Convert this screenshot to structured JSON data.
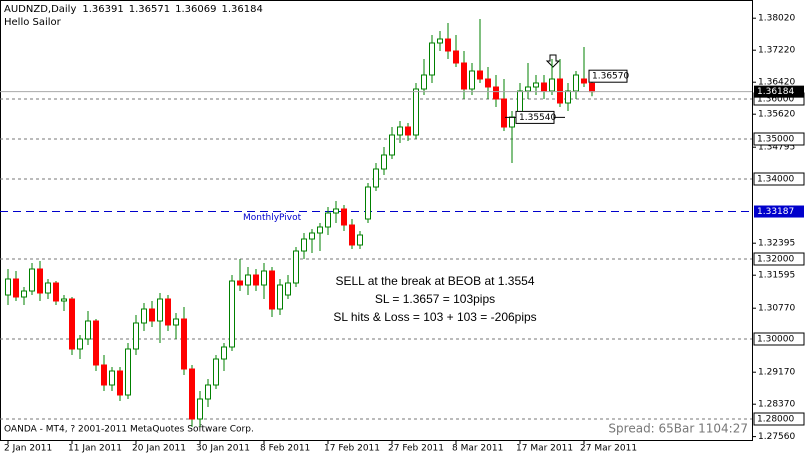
{
  "chart_data": {
    "type": "candlestick",
    "title": "AUDNZD,Daily",
    "subtitle": "Hello Sailor",
    "footer": "OANDA - MT4, ? 2001-2011 MetaQuotes Software Corp.",
    "status": "Spread: 65Bar  1104:27",
    "annotations": [
      "SELL at the break at BEOB at 1.3554",
      "SL = 1.3657 = 103pips",
      "SL hits & Loss = 103 + 103 = -206pips"
    ],
    "categories": [
      "2 Jan 2011",
      null,
      null,
      null,
      null,
      null,
      null,
      null,
      "11 Jan 2011",
      null,
      null,
      null,
      null,
      null,
      null,
      null,
      "20 Jan 2011",
      null,
      null,
      null,
      null,
      null,
      null,
      null,
      "30 Jan 2011",
      null,
      null,
      null,
      null,
      null,
      null,
      null,
      "8 Feb 2011",
      null,
      null,
      null,
      null,
      null,
      null,
      null,
      "17 Feb 2011",
      null,
      null,
      null,
      null,
      null,
      null,
      null,
      "27 Feb 2011",
      null,
      null,
      null,
      null,
      null,
      null,
      null,
      "8 Mar 2011",
      null,
      null,
      null,
      null,
      null,
      null,
      null,
      "17 Mar 2011",
      null,
      null,
      null,
      null,
      null,
      null,
      null,
      "27 Mar 2011",
      null
    ],
    "open": [
      1.311,
      1.315,
      1.3105,
      1.312,
      1.3175,
      1.3115,
      1.314,
      1.3095,
      1.31,
      1.2975,
      1.3,
      1.3045,
      1.2935,
      1.2885,
      1.292,
      1.286,
      1.2975,
      1.304,
      1.3075,
      1.3045,
      1.31,
      1.3035,
      1.305,
      1.2925,
      1.28,
      1.285,
      1.2885,
      1.295,
      1.298,
      1.3145,
      1.3135,
      1.316,
      1.3135,
      1.317,
      1.3075,
      1.311,
      1.314,
      1.322,
      1.325,
      1.3265,
      1.328,
      1.3315,
      1.3325,
      1.3285,
      1.3235,
      1.33,
      1.338,
      1.3425,
      1.346,
      1.351,
      1.353,
      1.351,
      1.3625,
      1.366,
      1.374,
      1.375,
      1.372,
      1.369,
      1.3625,
      1.367,
      1.365,
      1.363,
      1.36,
      1.353,
      1.3555,
      1.362,
      1.363,
      1.364,
      1.362,
      1.365,
      1.359,
      1.362,
      1.365,
      1.36391
    ],
    "high": [
      1.3175,
      1.317,
      1.313,
      1.319,
      1.3195,
      1.315,
      1.3145,
      1.311,
      1.3105,
      1.301,
      1.307,
      1.305,
      1.296,
      1.293,
      1.293,
      1.299,
      1.306,
      1.309,
      1.3095,
      1.3115,
      1.311,
      1.3065,
      1.308,
      1.2935,
      1.287,
      1.29,
      1.296,
      1.299,
      1.316,
      1.32,
      1.318,
      1.3175,
      1.319,
      1.318,
      1.315,
      1.316,
      1.323,
      1.3265,
      1.3275,
      1.329,
      1.333,
      1.3345,
      1.3335,
      1.33,
      1.327,
      1.339,
      1.344,
      1.348,
      1.353,
      1.3545,
      1.354,
      1.364,
      1.37,
      1.376,
      1.377,
      1.379,
      1.376,
      1.372,
      1.369,
      1.38,
      1.368,
      1.366,
      1.365,
      1.357,
      1.364,
      1.369,
      1.366,
      1.366,
      1.37,
      1.37,
      1.364,
      1.367,
      1.373,
      1.36571
    ],
    "low": [
      1.3085,
      1.3095,
      1.3085,
      1.311,
      1.3095,
      1.31,
      1.3085,
      1.307,
      1.296,
      1.295,
      1.2985,
      1.292,
      1.287,
      1.287,
      1.2845,
      1.285,
      1.296,
      1.302,
      1.303,
      1.299,
      1.302,
      1.3,
      1.291,
      1.278,
      1.278,
      1.283,
      1.2875,
      1.292,
      1.297,
      1.312,
      1.311,
      1.312,
      1.31,
      1.3055,
      1.306,
      1.31,
      1.313,
      1.32,
      1.3215,
      1.322,
      1.326,
      1.329,
      1.327,
      1.3225,
      1.3225,
      1.329,
      1.337,
      1.341,
      1.345,
      1.349,
      1.3495,
      1.35,
      1.361,
      1.364,
      1.372,
      1.37,
      1.368,
      1.36,
      1.361,
      1.364,
      1.36,
      1.358,
      1.352,
      1.344,
      1.354,
      1.36,
      1.361,
      1.36,
      1.361,
      1.358,
      1.357,
      1.36,
      1.363,
      1.36069
    ],
    "close": [
      1.315,
      1.3105,
      1.312,
      1.3175,
      1.3115,
      1.314,
      1.3095,
      1.31,
      1.2975,
      1.3,
      1.3045,
      1.2935,
      1.2885,
      1.292,
      1.286,
      1.2975,
      1.304,
      1.3075,
      1.3045,
      1.31,
      1.3035,
      1.305,
      1.2925,
      1.28,
      1.285,
      1.2885,
      1.295,
      1.298,
      1.3145,
      1.3135,
      1.316,
      1.3135,
      1.317,
      1.3075,
      1.3135,
      1.314,
      1.322,
      1.325,
      1.3265,
      1.328,
      1.3315,
      1.3325,
      1.3285,
      1.3235,
      1.326,
      1.338,
      1.3425,
      1.346,
      1.351,
      1.353,
      1.351,
      1.3625,
      1.366,
      1.374,
      1.375,
      1.372,
      1.369,
      1.3625,
      1.367,
      1.365,
      1.363,
      1.36,
      1.353,
      1.3555,
      1.362,
      1.363,
      1.364,
      1.362,
      1.365,
      1.359,
      1.362,
      1.366,
      1.364,
      1.36184
    ],
    "up_color": "#008000",
    "down_color": "#ff0000",
    "ylim": [
      1.27475,
      1.38475
    ],
    "yticks": [
      {
        "value": 1.3802,
        "label": "1.38020"
      },
      {
        "value": 1.3722,
        "label": "1.37220"
      },
      {
        "value": 1.3642,
        "label": "1.36420"
      },
      {
        "value": 1.3562,
        "label": "1.35620"
      },
      {
        "value": 1.34795,
        "label": "1.34795"
      },
      {
        "value": 1.32395,
        "label": "1.32395"
      },
      {
        "value": 1.31595,
        "label": "1.31595"
      },
      {
        "value": 1.3077,
        "label": "1.30770"
      },
      {
        "value": 1.2917,
        "label": "1.29170"
      },
      {
        "value": 1.2837,
        "label": "1.28370"
      },
      {
        "value": 1.2756,
        "label": "1.27560"
      }
    ],
    "levels": [
      {
        "value": 1.36,
        "label": "1.36000"
      },
      {
        "value": 1.35,
        "label": "1.35000"
      },
      {
        "value": 1.34,
        "label": "1.34000"
      },
      {
        "value": 1.32,
        "label": "1.32000"
      },
      {
        "value": 1.3,
        "label": "1.30000"
      },
      {
        "value": 1.28,
        "label": "1.28000"
      }
    ],
    "pivot": {
      "value": 1.33187,
      "label": "1.33187",
      "name": "MonthlyPivot",
      "color": "#0000cc"
    },
    "price_labels": [
      {
        "value": 1.3657,
        "label": "1.36570"
      },
      {
        "value": 1.3554,
        "label": "1.35540"
      }
    ]
  }
}
